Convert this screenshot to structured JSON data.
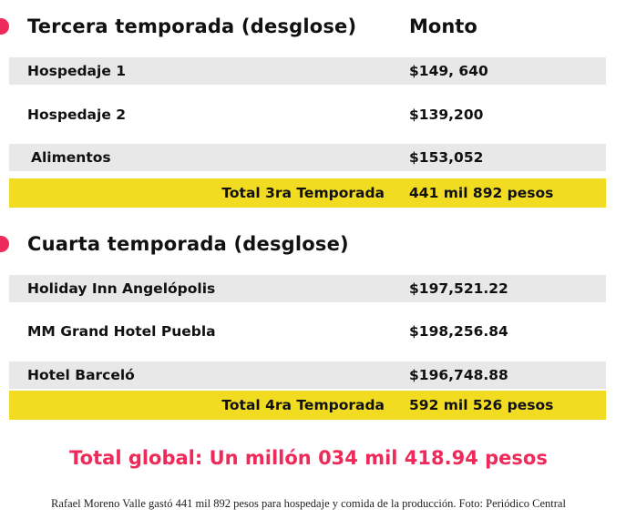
{
  "colors": {
    "accent": "#ee2a5a",
    "highlight": "#f2dc22",
    "row_shade": "#e8e8e8"
  },
  "section3": {
    "title": "Tercera temporada (desglose)",
    "column_header": "Monto",
    "rows": [
      {
        "label": "Hospedaje 1",
        "amount": "$149, 640"
      },
      {
        "label": "Hospedaje 2",
        "amount": "$139,200"
      },
      {
        "label": "Alimentos",
        "amount": "$153,052"
      }
    ],
    "total_label": "Total 3ra Temporada",
    "total_amount": "441 mil 892 pesos"
  },
  "section4": {
    "title": "Cuarta temporada (desglose)",
    "rows": [
      {
        "label": "Holiday Inn Angelópolis",
        "amount": "$197,521.22"
      },
      {
        "label": "MM Grand Hotel Puebla",
        "amount": "$198,256.84"
      },
      {
        "label": "Hotel Barceló",
        "amount": "$196,748.88"
      }
    ],
    "total_label": "Total 4ra Temporada",
    "total_amount": "592 mil 526 pesos"
  },
  "grand_total": "Total global:  Un millón 034 mil 418.94 pesos",
  "caption": "Rafael Moreno Valle gastó 441 mil 892 pesos para hospedaje y comida de la producción. Foto: Periódico Central"
}
